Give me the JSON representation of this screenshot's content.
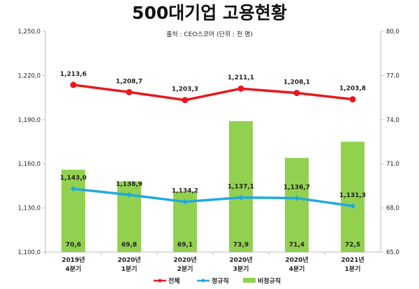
{
  "chart_data": {
    "type": "bar+line",
    "title": "500대기업 고용현황",
    "subtitle": "출처 : CEO스코어 (단위 : 천 명)",
    "categories": [
      [
        "2019년",
        "4분기"
      ],
      [
        "2020년",
        "1분기"
      ],
      [
        "2020년",
        "2분기"
      ],
      [
        "2020년",
        "3분기"
      ],
      [
        "2020년",
        "4분기"
      ],
      [
        "2021년",
        "1분기"
      ]
    ],
    "left_axis": {
      "ylim": [
        1100,
        1250
      ],
      "ticks": [
        "1,100,0",
        "1,130,0",
        "1,160,0",
        "1,190,0",
        "1,220,0",
        "1,250,0"
      ],
      "tick_values": [
        1100,
        1130,
        1160,
        1190,
        1220,
        1250
      ]
    },
    "right_axis": {
      "ylim": [
        65,
        80
      ],
      "ticks": [
        "65,0",
        "68,0",
        "71,0",
        "74,0",
        "77,0",
        "80,0"
      ],
      "tick_values": [
        65,
        68,
        71,
        74,
        77,
        80
      ]
    },
    "grid": false,
    "legend_position": "bottom",
    "series": [
      {
        "name": "전체",
        "type": "line",
        "axis": "left",
        "color": "#e8181e",
        "values": [
          1213.6,
          1208.7,
          1203.3,
          1211.1,
          1208.1,
          1203.8
        ],
        "labels": [
          "1,213,6",
          "1,208,7",
          "1,203,3",
          "1,211,1",
          "1,208,1",
          "1,203,8"
        ]
      },
      {
        "name": "정규직",
        "type": "line",
        "axis": "left",
        "color": "#1fa9e1",
        "values": [
          1143.0,
          1138.9,
          1134.2,
          1137.1,
          1136.7,
          1131.3
        ],
        "labels": [
          "1,143,0",
          "1,138,9",
          "1,134,2",
          "1,137,1",
          "1,136,7",
          "1,131,3"
        ]
      },
      {
        "name": "비정규직",
        "type": "bar",
        "axis": "right",
        "color": "#92d050",
        "values": [
          70.6,
          69.8,
          69.1,
          73.9,
          71.4,
          72.5
        ],
        "labels": [
          "70,6",
          "69,8",
          "69,1",
          "73,9",
          "71,4",
          "72,5"
        ]
      }
    ]
  }
}
